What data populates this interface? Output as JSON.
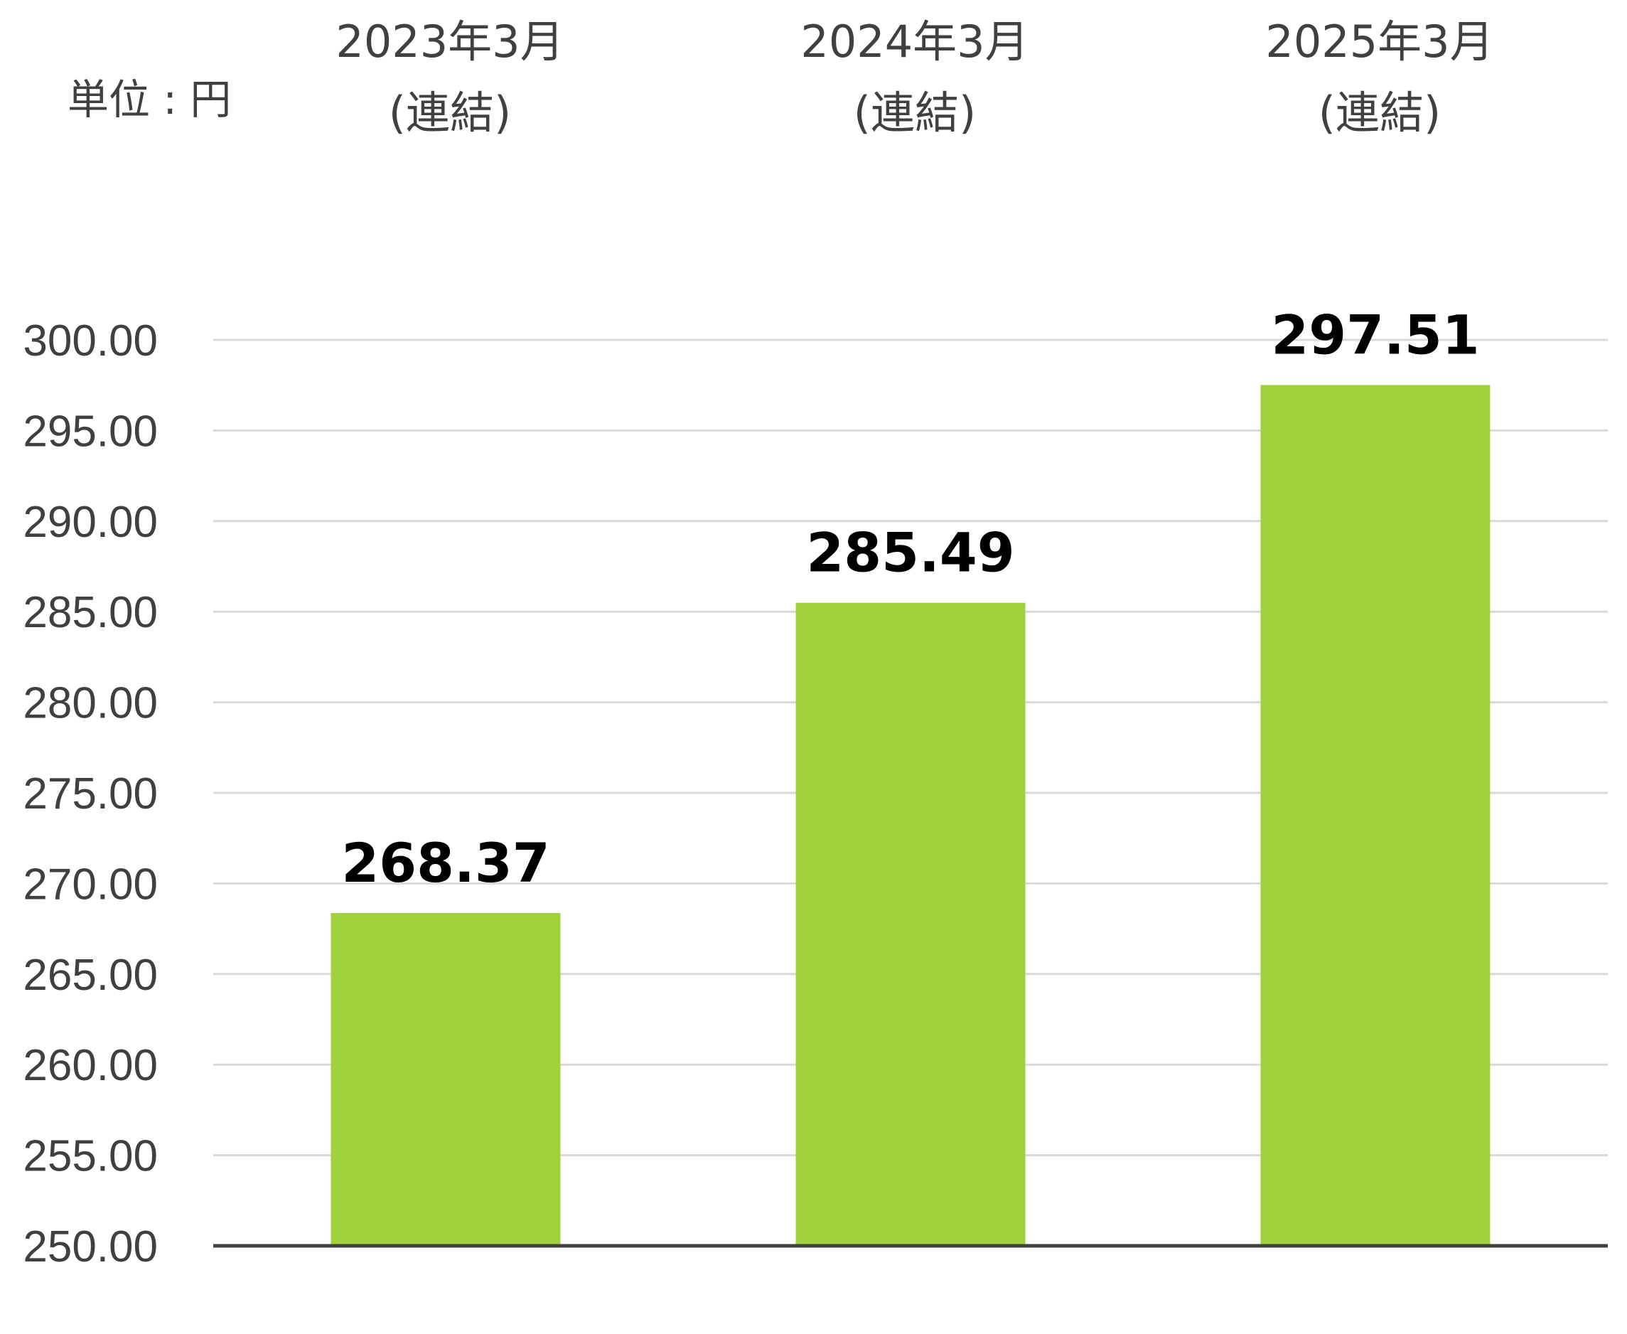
{
  "chart_data": {
    "type": "bar",
    "unit_label": "単位 : 円",
    "categories": [
      [
        "2023年3月",
        "(連結)"
      ],
      [
        "2024年3月",
        "(連結)"
      ],
      [
        "2025年3月",
        "(連結)"
      ]
    ],
    "values": [
      268.37,
      285.49,
      297.51
    ],
    "data_labels": [
      "268.37",
      "285.49",
      "297.51"
    ],
    "ylim": [
      250,
      300
    ],
    "yticks": [
      250,
      255,
      260,
      265,
      270,
      275,
      280,
      285,
      290,
      295,
      300
    ],
    "ytick_labels": [
      "250.00",
      "255.00",
      "260.00",
      "265.00",
      "270.00",
      "275.00",
      "280.00",
      "285.00",
      "290.00",
      "295.00",
      "300.00"
    ],
    "grid": true,
    "colors": {
      "bar": "#9fd23a",
      "grid": "#d9d9d9",
      "axis": "#404040",
      "text": "#404040",
      "data_label": "#000000"
    }
  }
}
